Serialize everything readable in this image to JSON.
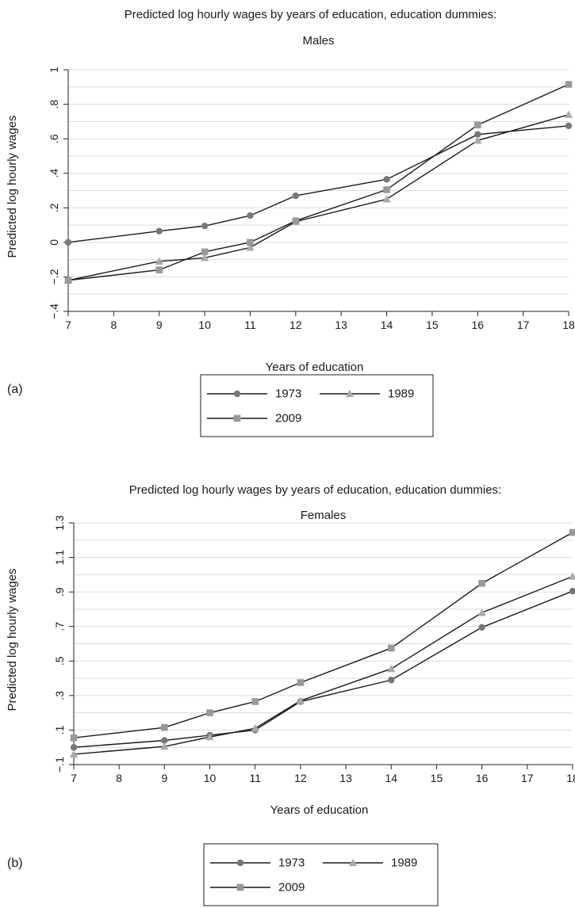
{
  "chart_data": [
    {
      "type": "line",
      "panel_label": "(a)",
      "title": "Predicted log hourly wages by years of education, education dummies:",
      "subtitle": "Males",
      "xlabel": "Years of education",
      "ylabel": "Predicted log hourly wages",
      "xlim": [
        7,
        18
      ],
      "ylim": [
        -0.4,
        1.0
      ],
      "xticks": [
        7,
        8,
        9,
        10,
        11,
        12,
        13,
        14,
        15,
        16,
        17,
        18
      ],
      "xtick_labels": [
        "7",
        "8",
        "9",
        "10",
        "11",
        "12",
        "13",
        "14",
        "15",
        "16",
        "17",
        "18"
      ],
      "yticks": [
        -0.4,
        -0.2,
        0,
        0.2,
        0.4,
        0.6,
        0.8,
        1.0
      ],
      "ytick_labels": [
        "−.4",
        "−.2",
        "0",
        ".2",
        ".4",
        ".6",
        ".8",
        "1"
      ],
      "grid": true,
      "legend_position": "bottom",
      "series": [
        {
          "name": "1973",
          "marker": "circle",
          "color": "#777777",
          "x": [
            7,
            9,
            10,
            11,
            12,
            14,
            16,
            18
          ],
          "values": [
            0.0,
            0.065,
            0.095,
            0.155,
            0.27,
            0.365,
            0.625,
            0.675
          ]
        },
        {
          "name": "1989",
          "marker": "triangle",
          "color": "#aaaaaa",
          "x": [
            7,
            9,
            10,
            11,
            12,
            14,
            16,
            18
          ],
          "values": [
            -0.22,
            -0.11,
            -0.09,
            -0.03,
            0.12,
            0.25,
            0.59,
            0.74
          ]
        },
        {
          "name": "2009",
          "marker": "square",
          "color": "#999999",
          "x": [
            7,
            9,
            10,
            11,
            12,
            14,
            16,
            18
          ],
          "values": [
            -0.22,
            -0.16,
            -0.055,
            0.0,
            0.125,
            0.305,
            0.68,
            0.915
          ]
        }
      ]
    },
    {
      "type": "line",
      "panel_label": "(b)",
      "title": "Predicted log hourly wages by years of education, education dummies:",
      "subtitle": "Females",
      "xlabel": "Years of education",
      "ylabel": "Predicted log hourly wages",
      "xlim": [
        7,
        18
      ],
      "ylim": [
        -0.1,
        1.3
      ],
      "xticks": [
        7,
        8,
        9,
        10,
        11,
        12,
        13,
        14,
        15,
        16,
        17,
        18
      ],
      "xtick_labels": [
        "7",
        "8",
        "9",
        "10",
        "11",
        "12",
        "13",
        "14",
        "15",
        "16",
        "17",
        "18"
      ],
      "yticks": [
        -0.1,
        0.1,
        0.3,
        0.5,
        0.7,
        0.9,
        1.1,
        1.3
      ],
      "ytick_labels": [
        "−.1",
        ".1",
        ".3",
        ".5",
        ".7",
        ".9",
        "1.1",
        "1.3"
      ],
      "grid": true,
      "legend_position": "bottom",
      "series": [
        {
          "name": "1973",
          "marker": "circle",
          "color": "#777777",
          "x": [
            7,
            9,
            10,
            11,
            12,
            14,
            16,
            18
          ],
          "values": [
            0.0,
            0.04,
            0.07,
            0.1,
            0.265,
            0.39,
            0.695,
            0.905
          ]
        },
        {
          "name": "1989",
          "marker": "triangle",
          "color": "#aaaaaa",
          "x": [
            7,
            9,
            10,
            11,
            12,
            14,
            16,
            18
          ],
          "values": [
            -0.04,
            0.005,
            0.06,
            0.11,
            0.27,
            0.455,
            0.78,
            0.99
          ]
        },
        {
          "name": "2009",
          "marker": "square",
          "color": "#999999",
          "x": [
            7,
            9,
            10,
            11,
            12,
            14,
            16,
            18
          ],
          "values": [
            0.055,
            0.115,
            0.2,
            0.265,
            0.375,
            0.575,
            0.95,
            1.245
          ]
        }
      ]
    }
  ]
}
